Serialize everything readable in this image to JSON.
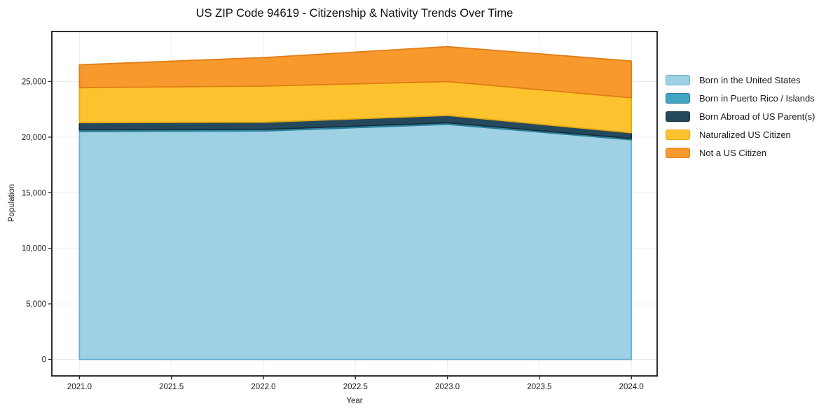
{
  "chart_data": {
    "type": "area",
    "stacked": true,
    "title": "US ZIP Code 94619 - Citizenship & Nativity Trends Over Time",
    "xlabel": "Year",
    "ylabel": "Population",
    "x": [
      2021,
      2022,
      2023,
      2024
    ],
    "series": [
      {
        "name": "Born in the United States",
        "color": "#9fd1e5",
        "edge_color": "#68afcf",
        "values": [
          20500,
          20550,
          21150,
          19750
        ]
      },
      {
        "name": "Born in Puerto Rico / Islands",
        "color": "#41a6c3",
        "edge_color": "#2c7f99",
        "values": [
          150,
          140,
          140,
          130
        ]
      },
      {
        "name": "Born Abroad of US Parent(s)",
        "color": "#25495c",
        "edge_color": "#142e3c",
        "values": [
          650,
          650,
          660,
          510
        ]
      },
      {
        "name": "Naturalized US Citizen",
        "color": "#fdc32e",
        "edge_color": "#e2a717",
        "values": [
          3150,
          3250,
          3050,
          3150
        ]
      },
      {
        "name": "Not a US Citizen",
        "color": "#f8992e",
        "edge_color": "#e07d15",
        "values": [
          2050,
          2560,
          3140,
          3300
        ]
      }
    ],
    "totals": [
      26500,
      27150,
      28140,
      26840
    ],
    "xlim": [
      2020.85,
      2024.14
    ],
    "ylim": [
      -1480,
      29500
    ],
    "x_ticks": [
      {
        "v": 2021.0,
        "label": "2021.0"
      },
      {
        "v": 2021.5,
        "label": "2021.5"
      },
      {
        "v": 2022.0,
        "label": "2022.0"
      },
      {
        "v": 2022.5,
        "label": "2022.5"
      },
      {
        "v": 2023.0,
        "label": "2023.0"
      },
      {
        "v": 2023.5,
        "label": "2023.5"
      },
      {
        "v": 2024.0,
        "label": "2024.0"
      }
    ],
    "y_ticks": [
      {
        "v": 0,
        "label": "0"
      },
      {
        "v": 5000,
        "label": "5,000"
      },
      {
        "v": 10000,
        "label": "10,000"
      },
      {
        "v": 15000,
        "label": "15,000"
      },
      {
        "v": 20000,
        "label": "20,000"
      },
      {
        "v": 25000,
        "label": "25,000"
      }
    ],
    "grid": true,
    "legend_position": "right-outside"
  }
}
